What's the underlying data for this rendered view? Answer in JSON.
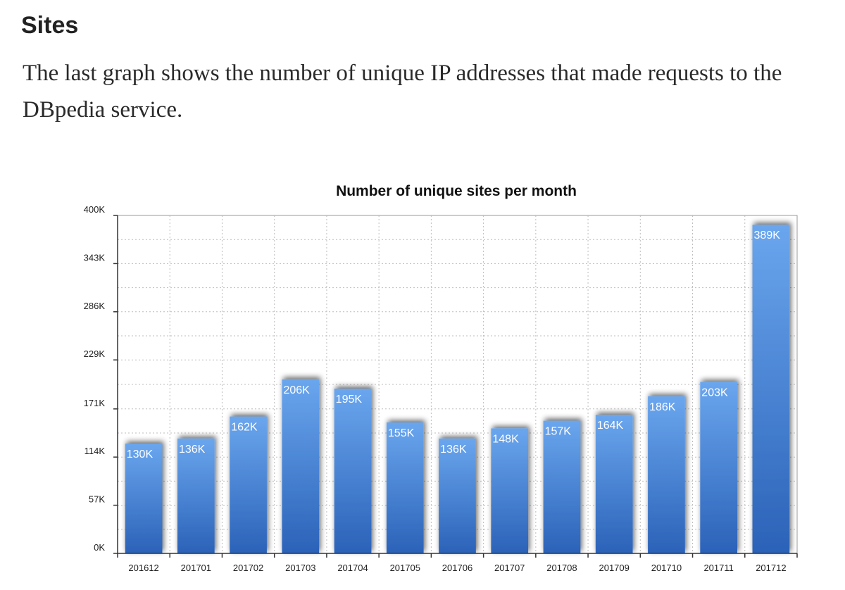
{
  "section": {
    "heading": "Sites",
    "intro": "The last graph shows the number of unique IP addresses that made requests to the DBpedia service."
  },
  "colors": {
    "bar_top": "#6aa6ee",
    "bar_bottom": "#2b62b8",
    "grid": "#bdbdbd",
    "frame": "#9a9a9a"
  },
  "chart_data": {
    "type": "bar",
    "title": "Number of unique sites per month",
    "xlabel": "",
    "ylabel": "",
    "categories": [
      "201612",
      "201701",
      "201702",
      "201703",
      "201704",
      "201705",
      "201706",
      "201707",
      "201708",
      "201709",
      "201710",
      "201711",
      "201712"
    ],
    "values": [
      130,
      136,
      162,
      206,
      195,
      155,
      136,
      148,
      157,
      164,
      186,
      203,
      389
    ],
    "value_labels": [
      "130K",
      "136K",
      "162K",
      "206K",
      "195K",
      "155K",
      "136K",
      "148K",
      "157K",
      "164K",
      "186K",
      "203K",
      "389K"
    ],
    "value_unit": "thousands",
    "ylim": [
      0,
      400
    ],
    "yticks": [
      0,
      57,
      114,
      171,
      229,
      286,
      343,
      400
    ],
    "ytick_labels": [
      "0K",
      "57K",
      "114K",
      "171K",
      "229K",
      "286K",
      "343K",
      "400K"
    ],
    "grid": true,
    "legend": "none"
  }
}
